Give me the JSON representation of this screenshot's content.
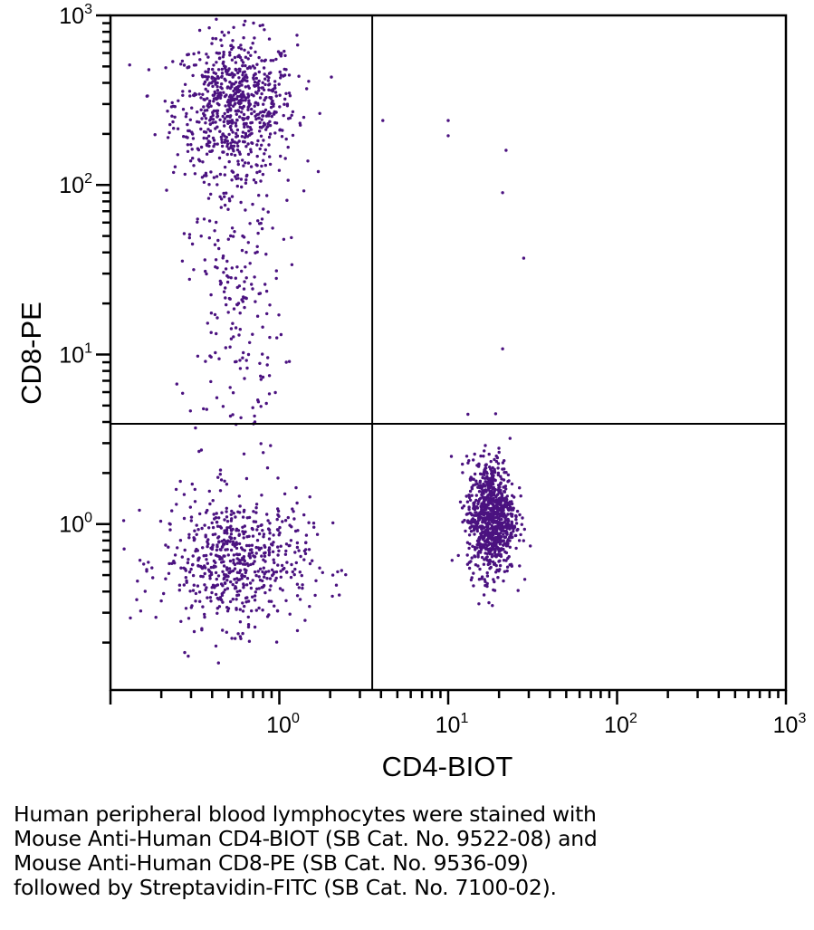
{
  "chart_data": {
    "type": "scatter",
    "xlabel": "CD4-BIOT",
    "ylabel": "CD8-PE",
    "xscale": "log",
    "yscale": "log",
    "xlim": [
      0.1,
      1000
    ],
    "ylim": [
      0.105,
      1000
    ],
    "x_ticks": [
      {
        "base": "10",
        "exp": "0",
        "value": 1
      },
      {
        "base": "10",
        "exp": "1",
        "value": 10
      },
      {
        "base": "10",
        "exp": "2",
        "value": 100
      },
      {
        "base": "10",
        "exp": "3",
        "value": 1000
      }
    ],
    "y_ticks": [
      {
        "base": "10",
        "exp": "0",
        "value": 1
      },
      {
        "base": "10",
        "exp": "1",
        "value": 10
      },
      {
        "base": "10",
        "exp": "2",
        "value": 100
      },
      {
        "base": "10",
        "exp": "3",
        "value": 1000
      }
    ],
    "grid": false,
    "quadrant_gate": {
      "x": 3.55,
      "y": 3.9
    },
    "point_color": "#4b1280",
    "populations": [
      {
        "quadrant": "upper-left",
        "center": [
          0.55,
          300
        ],
        "log_spread": [
          0.18,
          0.2
        ],
        "count": 700
      },
      {
        "quadrant": "upper-left",
        "center": [
          0.55,
          30
        ],
        "log_spread": [
          0.14,
          0.55
        ],
        "count": 260
      },
      {
        "quadrant": "lower-left",
        "center": [
          0.55,
          0.6
        ],
        "log_spread": [
          0.22,
          0.19
        ],
        "count": 620
      },
      {
        "quadrant": "lower-right",
        "center": [
          18,
          1.1
        ],
        "log_spread": [
          0.07,
          0.17
        ],
        "count": 900
      }
    ],
    "outliers": [
      [
        4.1,
        240
      ],
      [
        10,
        240
      ],
      [
        10,
        195
      ],
      [
        22,
        160
      ],
      [
        21,
        90
      ],
      [
        28,
        37
      ],
      [
        21,
        10.8
      ]
    ]
  },
  "caption": [
    "Human peripheral blood lymphocytes were stained with",
    "Mouse Anti-Human CD4-BIOT (SB Cat. No. 9522-08) and",
    "Mouse Anti-Human CD8-PE (SB Cat. No. 9536-09)",
    "followed by Streptavidin-FITC (SB Cat. No. 7100-02)."
  ]
}
